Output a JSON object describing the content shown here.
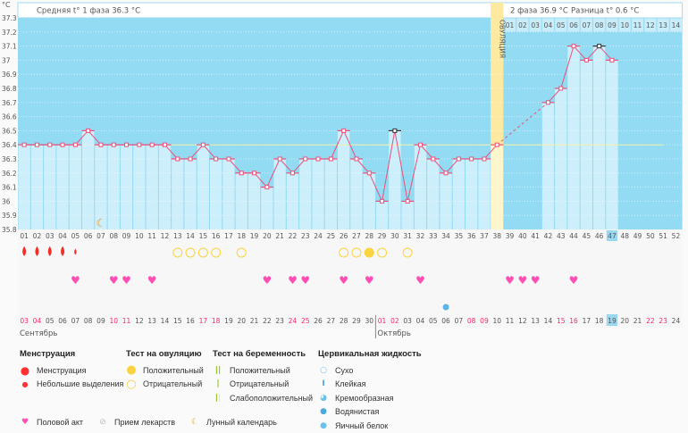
{
  "unit": "°C",
  "phase1_avg": "Средняя t° 1 фаза 36.3 °C",
  "phase2_avg": "2 фаза 36.9 °C",
  "difference": "Разница t° 0.6 °C",
  "ovulation_label": "ОВУЛЯЦИЯ",
  "colors": {
    "bg": "#93daf3",
    "bar": "#cdeefb",
    "line": "#e8527a",
    "ovulation": "#fdeaa0",
    "weekend": "#ee2e64",
    "heart": "#ff4fb4",
    "cover": "#f3f2a8"
  },
  "chart_data": {
    "type": "line",
    "title": "",
    "ylabel": "°C",
    "ylim": [
      35.8,
      37.3
    ],
    "yticks": [
      "37.3",
      "37.2",
      "37.1",
      "37",
      "36.9",
      "36.8",
      "36.7",
      "36.6",
      "36.5",
      "36.4",
      "36.3",
      "36.2",
      "36.1",
      "36",
      "35.9",
      "35.8"
    ],
    "cycle_days": [
      "01",
      "02",
      "03",
      "04",
      "05",
      "06",
      "07",
      "08",
      "09",
      "10",
      "11",
      "12",
      "13",
      "14",
      "15",
      "16",
      "17",
      "18",
      "19",
      "20",
      "21",
      "22",
      "23",
      "24",
      "25",
      "26",
      "27",
      "28",
      "29",
      "30",
      "31",
      "32",
      "33",
      "34",
      "35",
      "36",
      "37",
      "38",
      "39",
      "40",
      "41",
      "42",
      "43",
      "44",
      "45",
      "46",
      "47",
      "48",
      "49",
      "50",
      "51",
      "52"
    ],
    "phase2_days": [
      "01",
      "02",
      "03",
      "04",
      "05",
      "06",
      "07",
      "08",
      "09",
      "10",
      "11",
      "12",
      "13",
      "14"
    ],
    "temperatures": [
      36.4,
      36.4,
      36.4,
      36.4,
      36.4,
      36.5,
      36.4,
      36.4,
      36.4,
      36.4,
      36.4,
      36.4,
      36.3,
      36.3,
      36.4,
      36.3,
      36.3,
      36.2,
      36.2,
      36.1,
      36.3,
      36.2,
      36.3,
      36.3,
      36.3,
      36.5,
      36.3,
      36.2,
      36.0,
      36.5,
      36.0,
      36.4,
      36.3,
      36.2,
      36.3,
      36.3,
      36.3,
      36.4,
      null,
      null,
      null,
      36.7,
      36.8,
      37.1,
      37.0,
      37.1,
      37.0,
      null,
      null,
      null,
      null,
      null
    ],
    "excluded_days": [
      30,
      46
    ],
    "cover_line": 36.4,
    "ovulation_day": 38,
    "current_day": 47,
    "dates": [
      "03",
      "04",
      "05",
      "06",
      "07",
      "08",
      "09",
      "10",
      "11",
      "12",
      "13",
      "14",
      "15",
      "16",
      "17",
      "18",
      "19",
      "20",
      "21",
      "22",
      "23",
      "24",
      "25",
      "26",
      "27",
      "28",
      "29",
      "30",
      "01",
      "02",
      "03",
      "04",
      "05",
      "06",
      "07",
      "08",
      "09",
      "10",
      "11",
      "12",
      "13",
      "14",
      "15",
      "16",
      "17",
      "18",
      "19",
      "20",
      "21",
      "22",
      "23",
      "24"
    ],
    "weekend_days": [
      1,
      2,
      8,
      9,
      15,
      16,
      22,
      23,
      29,
      30,
      36,
      37,
      43,
      44,
      50,
      51
    ],
    "months": [
      {
        "label": "Сентябрь",
        "start_day": 1
      },
      {
        "label": "Октябрь",
        "start_day": 29
      }
    ],
    "menstruation_days": [
      1,
      2,
      3,
      4
    ],
    "spotting_days": [
      5
    ],
    "ovulation_test_negative": [
      13,
      14,
      15,
      16,
      18,
      26,
      27,
      29,
      31
    ],
    "ovulation_test_positive": [
      28
    ],
    "intercourse_days": [
      5,
      8,
      9,
      11,
      20,
      22,
      23,
      26,
      28,
      32,
      39,
      40,
      41,
      44
    ],
    "lunar_days": [
      7
    ],
    "cervical_creamy_days": [
      34
    ]
  },
  "legend": {
    "menstruation": {
      "title": "Менструация",
      "items": [
        "Менструация",
        "Небольшие выделения"
      ]
    },
    "ovulation_test": {
      "title": "Тест на овуляцию",
      "items": [
        "Положительный",
        "Отрицательный"
      ]
    },
    "pregnancy_test": {
      "title": "Тест на беременность",
      "items": [
        "Положительный",
        "Отрицательный",
        "Слабоположительный"
      ]
    },
    "cervical": {
      "title": "Цервикальная жидкость",
      "items": [
        "Сухо",
        "Клейкая",
        "Кремообразная",
        "Водянистая",
        "Яичный белок"
      ]
    },
    "other": [
      "Половой акт",
      "Прием лекарств",
      "Лунный календарь"
    ]
  }
}
